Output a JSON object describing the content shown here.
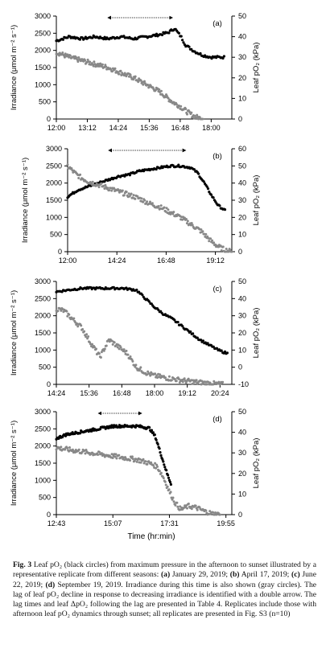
{
  "figure": {
    "x_axis_title": "Time (hr:min)",
    "panels": [
      {
        "label": "(a)",
        "left_axis_label": "Irradiance (μmol m⁻² s⁻¹)",
        "right_axis_label": "Leaf pO₂ (kPa)",
        "left_ticks": [
          "0",
          "500",
          "1000",
          "1500",
          "2000",
          "2500",
          "3000"
        ],
        "right_ticks": [
          "0",
          "10",
          "20",
          "30",
          "40",
          "50"
        ],
        "x_ticks": [
          "12:00",
          "13:12",
          "14:24",
          "15:36",
          "16:48",
          "18:00"
        ],
        "lag_arrow": {
          "from": "14:00",
          "to": "16:30"
        }
      },
      {
        "label": "(b)",
        "left_axis_label": "Irradiance (μmol m⁻² s⁻¹)",
        "right_axis_label": "Leaf pO₂ (kPa)",
        "left_ticks": [
          "0",
          "500",
          "1000",
          "1500",
          "2000",
          "2500",
          "3000"
        ],
        "right_ticks": [
          "0",
          "10",
          "20",
          "30",
          "40",
          "50",
          "60"
        ],
        "x_ticks": [
          "12:00",
          "14:24",
          "16:48",
          "19:12"
        ],
        "lag_arrow": {
          "from": "14:00",
          "to": "17:45"
        }
      },
      {
        "label": "(c)",
        "left_axis_label": "Irradiance (μmol m⁻² s⁻¹)",
        "right_axis_label": "Leaf pO₂ (kPa)",
        "left_ticks": [
          "0",
          "500",
          "1000",
          "1500",
          "2000",
          "2500",
          "3000"
        ],
        "right_ticks": [
          "-10",
          "0",
          "10",
          "20",
          "30",
          "40",
          "50"
        ],
        "x_ticks": [
          "14:24",
          "15:36",
          "16:48",
          "18:00",
          "19:12",
          "20:24"
        ],
        "lag_arrow": null
      },
      {
        "label": "(d)",
        "left_axis_label": "Irradiance (μmol m⁻² s⁻¹)",
        "right_axis_label": "Leaf pO₂ (kPa)",
        "left_ticks": [
          "0",
          "500",
          "1000",
          "1500",
          "2000",
          "2500",
          "3000"
        ],
        "right_ticks": [
          "0",
          "10",
          "20",
          "30",
          "40",
          "50"
        ],
        "x_ticks": [
          "12:43",
          "15:07",
          "17:31",
          "19:55"
        ],
        "lag_arrow": {
          "from": "14:30",
          "to": "16:20"
        }
      }
    ]
  },
  "chart_data": [
    {
      "type": "scatter",
      "panel": "(a)",
      "x_range": [
        "12:00",
        "18:48"
      ],
      "y_left_range": [
        0,
        3000
      ],
      "y_right_range": [
        0,
        50
      ],
      "series": [
        {
          "color": "#000000",
          "axis": "right",
          "x": [
            "12:00",
            "12:30",
            "13:00",
            "13:30",
            "14:00",
            "14:30",
            "15:00",
            "15:30",
            "16:00",
            "16:20",
            "16:35",
            "16:50",
            "17:00",
            "17:20",
            "17:40",
            "18:00",
            "18:20",
            "18:30"
          ],
          "y": [
            38,
            40,
            39,
            40,
            39,
            40,
            39,
            40,
            41,
            42,
            44,
            40,
            36,
            33,
            31,
            30,
            30,
            30
          ]
        },
        {
          "color": "#888888",
          "axis": "left",
          "x": [
            "12:00",
            "12:30",
            "13:00",
            "13:30",
            "14:00",
            "14:30",
            "15:00",
            "15:30",
            "16:00",
            "16:30",
            "16:50",
            "17:05",
            "17:20",
            "17:40"
          ],
          "y": [
            1950,
            1800,
            1700,
            1600,
            1500,
            1350,
            1200,
            1000,
            800,
            500,
            350,
            200,
            80,
            0
          ]
        }
      ]
    },
    {
      "type": "scatter",
      "panel": "(b)",
      "x_range": [
        "12:00",
        "20:00"
      ],
      "y_left_range": [
        0,
        3000
      ],
      "y_right_range": [
        0,
        60
      ],
      "series": [
        {
          "color": "#000000",
          "axis": "right",
          "x": [
            "12:00",
            "12:30",
            "13:00",
            "13:30",
            "14:00",
            "14:30",
            "15:00",
            "15:30",
            "16:00",
            "16:30",
            "17:00",
            "17:30",
            "18:00",
            "18:20",
            "18:40",
            "19:00",
            "19:20",
            "19:40"
          ],
          "y": [
            32,
            36,
            38,
            40,
            42,
            44,
            45,
            47,
            48,
            49,
            50,
            50,
            49,
            46,
            40,
            33,
            27,
            24
          ]
        },
        {
          "color": "#888888",
          "axis": "left",
          "x": [
            "12:00",
            "12:20",
            "12:40",
            "13:00",
            "13:30",
            "14:00",
            "14:30",
            "15:00",
            "15:30",
            "16:00",
            "16:30",
            "17:00",
            "17:30",
            "18:00",
            "18:30",
            "19:00",
            "19:20",
            "19:40",
            "20:00"
          ],
          "y": [
            2500,
            2300,
            2150,
            2050,
            1950,
            1850,
            1750,
            1650,
            1550,
            1400,
            1300,
            1150,
            1000,
            800,
            600,
            300,
            150,
            50,
            0
          ]
        }
      ]
    },
    {
      "type": "scatter",
      "panel": "(c)",
      "x_range": [
        "14:24",
        "20:50"
      ],
      "y_left_range": [
        0,
        3000
      ],
      "y_right_range": [
        -10,
        50
      ],
      "series": [
        {
          "color": "#000000",
          "axis": "right",
          "x": [
            "14:24",
            "14:50",
            "15:20",
            "15:50",
            "16:20",
            "16:50",
            "17:20",
            "17:40",
            "18:00",
            "18:20",
            "18:40",
            "19:00",
            "19:20",
            "19:40",
            "20:00",
            "20:20",
            "20:40"
          ],
          "y": [
            44,
            45,
            46,
            46,
            46,
            46,
            45,
            40,
            35,
            31,
            28,
            24,
            20,
            16,
            13,
            10,
            8
          ]
        },
        {
          "color": "#888888",
          "axis": "left",
          "x": [
            "14:24",
            "14:40",
            "15:00",
            "15:20",
            "15:40",
            "16:00",
            "16:20",
            "16:40",
            "17:00",
            "17:20",
            "17:40",
            "18:00",
            "18:30",
            "19:00",
            "19:30",
            "20:00",
            "20:30"
          ],
          "y": [
            2200,
            2150,
            1900,
            1650,
            1200,
            800,
            1300,
            1100,
            900,
            500,
            350,
            250,
            180,
            120,
            70,
            30,
            0
          ]
        }
      ]
    },
    {
      "type": "scatter",
      "panel": "(d)",
      "x_range": [
        "12:43",
        "20:10"
      ],
      "y_left_range": [
        0,
        3000
      ],
      "y_right_range": [
        0,
        50
      ],
      "series": [
        {
          "color": "#000000",
          "axis": "right",
          "x": [
            "12:43",
            "13:10",
            "13:40",
            "14:10",
            "14:40",
            "15:10",
            "15:40",
            "16:10",
            "16:40",
            "16:55",
            "17:05",
            "17:15",
            "17:25",
            "17:35"
          ],
          "y": [
            37,
            39,
            40,
            41,
            42,
            43,
            43,
            43,
            42,
            38,
            32,
            26,
            20,
            15
          ]
        },
        {
          "color": "#888888",
          "axis": "left",
          "x": [
            "12:43",
            "13:10",
            "13:40",
            "14:10",
            "14:40",
            "15:10",
            "15:40",
            "16:10",
            "16:40",
            "17:00",
            "17:15",
            "17:30",
            "17:45",
            "18:00",
            "18:20",
            "18:40",
            "19:00",
            "19:20",
            "19:40"
          ],
          "y": [
            1950,
            1900,
            1850,
            1800,
            1750,
            1700,
            1650,
            1600,
            1500,
            1400,
            1100,
            700,
            350,
            150,
            250,
            200,
            100,
            30,
            0
          ]
        }
      ]
    }
  ],
  "caption": {
    "fig_label": "Fig. 3",
    "title_text": " Leaf pO₂ (black circles) from maximum pressure in the afternoon to sunset illustrated by a representative replicate from different seasons: ",
    "a": "(a)",
    "a_text": " January 29, 2019; ",
    "b": "(b)",
    "b_text": " April 17, 2019; ",
    "c": "(c)",
    "c_text": " June 22, 2019; ",
    "d": "(d)",
    "d_text": " September 19, 2019. Irradiance during this time is also shown (gray circles). The lag of leaf pO₂ decline in response to decreasing irradiance is identified with a double arrow. The lag times and leaf ΔpO₂ following the lag are presented in Table 4. Replicates include those with afternoon leaf pO₂ dynamics through sunset; all replicates are presented in Fig. S3 (n=10)"
  }
}
